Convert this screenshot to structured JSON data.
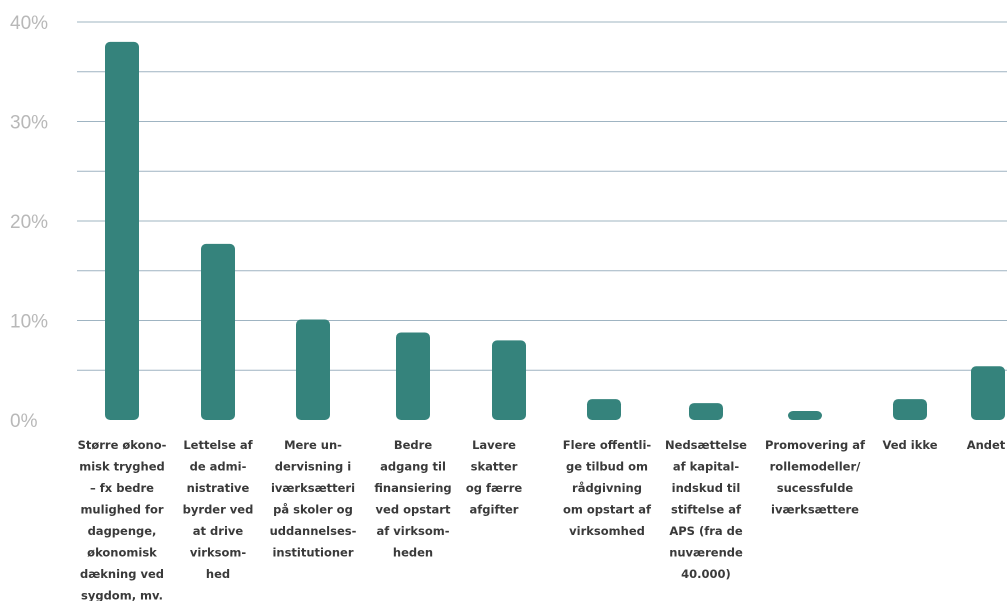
{
  "chart_data": {
    "type": "bar",
    "title": "",
    "xlabel": "",
    "ylabel": "",
    "ylim": [
      0,
      40
    ],
    "yticks": [
      0,
      10,
      20,
      30,
      40
    ],
    "ytick_labels": [
      "0%",
      "10%",
      "20%",
      "30%",
      "40%"
    ],
    "grid": true,
    "colors": {
      "bar": "#35837c",
      "grid": "#9fb4c2",
      "tick": "#b8b8b8",
      "label": "#3a3a3a"
    },
    "categories": [
      [
        "Større økono-",
        "misk tryghed",
        "– fx bedre",
        "mulighed for",
        "dagpenge,",
        "økonomisk",
        "dækning ved",
        "sygdom, mv."
      ],
      [
        "Lettelse af",
        "de admi-",
        "nistrative",
        "byrder ved",
        "at drive",
        "virksom-",
        "hed"
      ],
      [
        "Mere un-",
        "dervisning i",
        "iværksætteri",
        "på skoler og",
        "uddannelses-",
        "institutioner"
      ],
      [
        "Bedre",
        "adgang til",
        "finansiering",
        "ved opstart",
        "af virksom-",
        "heden"
      ],
      [
        "Lavere",
        "skatter",
        "og færre",
        "afgifter"
      ],
      [
        "Flere offentli-",
        "ge tilbud om",
        "rådgivning",
        "om opstart af",
        "virksomhed"
      ],
      [
        "Nedsættelse",
        "af kapital-",
        "indskud til",
        "stiftelse af",
        "APS (fra de",
        "nuværende",
        "40.000)"
      ],
      [
        "Promovering af",
        "rollemodeller/",
        "sucessfulde",
        "iværksættere"
      ],
      [
        "Ved ikke"
      ],
      [
        "Andet"
      ]
    ],
    "values": [
      38.0,
      17.7,
      10.1,
      8.8,
      8.0,
      2.1,
      1.7,
      0.9,
      2.1,
      5.4
    ]
  }
}
